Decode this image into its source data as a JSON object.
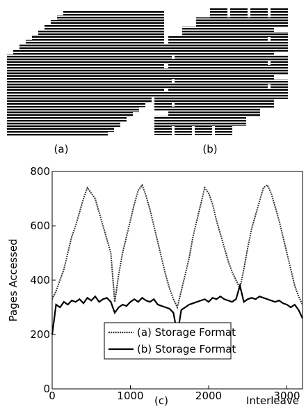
{
  "figure": {
    "panel_labels": [
      "(a)",
      "(b)"
    ]
  },
  "chart_data": {
    "type": "line",
    "caption": "(c)",
    "x_label": "Interleave",
    "y_label": "Pages Accessed",
    "x": [
      0,
      50,
      100,
      150,
      200,
      250,
      300,
      350,
      400,
      450,
      500,
      550,
      600,
      650,
      700,
      750,
      800,
      850,
      900,
      950,
      1000,
      1050,
      1100,
      1150,
      1200,
      1250,
      1300,
      1350,
      1400,
      1450,
      1500,
      1550,
      1600,
      1650,
      1700,
      1750,
      1800,
      1850,
      1900,
      1950,
      2000,
      2050,
      2100,
      2150,
      2200,
      2250,
      2300,
      2350,
      2400,
      2450,
      2500,
      2550,
      2600,
      2650,
      2700,
      2750,
      2800,
      2850,
      2900,
      2950,
      3000,
      3050,
      3100,
      3150,
      3200
    ],
    "series": [
      {
        "name": "(a) Storage Format",
        "color": "#333333",
        "style": "dotted",
        "values": [
          330,
          360,
          400,
          440,
          500,
          560,
          600,
          650,
          700,
          740,
          720,
          700,
          650,
          600,
          550,
          500,
          320,
          420,
          500,
          560,
          620,
          680,
          730,
          750,
          710,
          660,
          600,
          540,
          480,
          420,
          370,
          330,
          300,
          360,
          420,
          480,
          560,
          620,
          680,
          740,
          720,
          680,
          620,
          570,
          520,
          470,
          430,
          400,
          370,
          440,
          520,
          590,
          640,
          690,
          740,
          750,
          720,
          670,
          620,
          560,
          500,
          440,
          380,
          340,
          310
        ]
      },
      {
        "name": "(b) Storage Format",
        "color": "#000000",
        "style": "solid",
        "values": [
          200,
          310,
          300,
          320,
          310,
          325,
          320,
          330,
          315,
          335,
          325,
          340,
          320,
          330,
          335,
          320,
          280,
          300,
          310,
          305,
          320,
          330,
          320,
          335,
          325,
          320,
          330,
          310,
          305,
          300,
          295,
          280,
          200,
          290,
          300,
          310,
          315,
          320,
          325,
          330,
          320,
          335,
          330,
          340,
          330,
          325,
          320,
          330,
          380,
          320,
          330,
          335,
          330,
          340,
          335,
          330,
          325,
          320,
          325,
          315,
          310,
          300,
          310,
          290,
          260
        ]
      }
    ],
    "xlim": [
      0,
      3200
    ],
    "ylim": [
      0,
      800
    ],
    "xticks": [
      0,
      1000,
      2000,
      3000
    ],
    "yticks": [
      0,
      200,
      400,
      600,
      800
    ],
    "legend": "lower-center"
  }
}
